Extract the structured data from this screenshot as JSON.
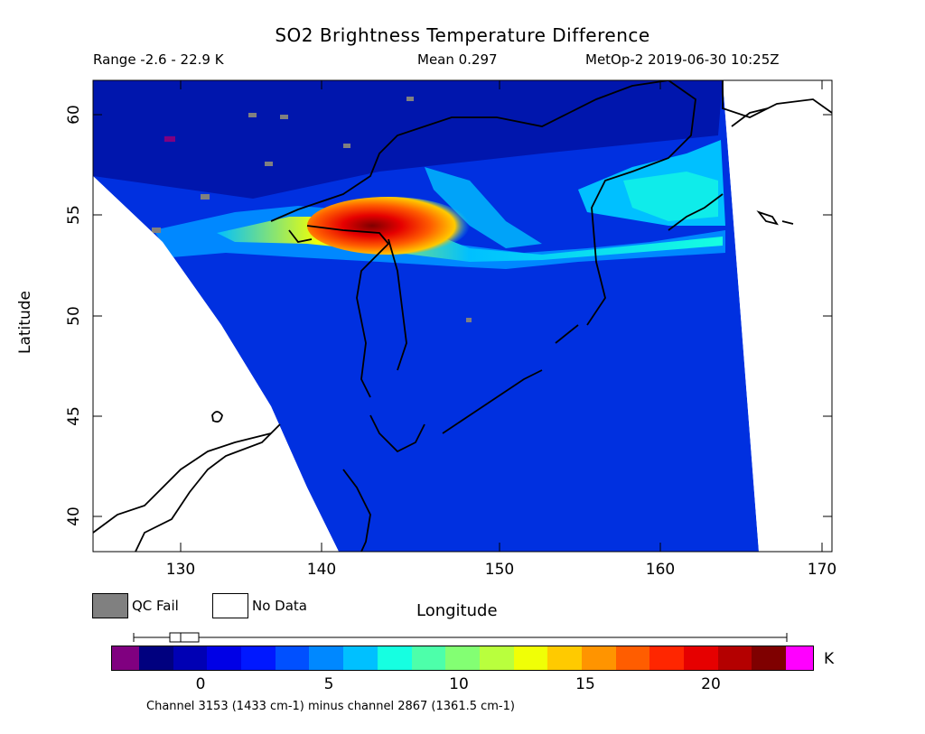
{
  "header": {
    "title": "SO2 Brightness Temperature Difference",
    "range": "Range -2.6 - 22.9 K",
    "mean": "Mean 0.297",
    "satellite_time": "MetOp-2 2019-06-30 10:25Z"
  },
  "axes": {
    "xlabel": "Longitude",
    "ylabel": "Latitude",
    "xticks": [
      "130",
      "140",
      "150",
      "160",
      "170"
    ],
    "yticks": [
      "40",
      "45",
      "50",
      "55",
      "60"
    ]
  },
  "legend": {
    "qc_fail_label": "QC Fail",
    "no_data_label": "No Data",
    "qc_fail_color": "#808080",
    "no_data_color": "#ffffff"
  },
  "colorbar": {
    "unit": "K",
    "ticks": [
      "0",
      "5",
      "10",
      "15",
      "20"
    ],
    "underflow_color": "#800080",
    "overflow_color": "#ff00ff",
    "colors": [
      "#00007f",
      "#0000b4",
      "#0000e6",
      "#0018ff",
      "#0050ff",
      "#0088ff",
      "#00c0ff",
      "#16ffe1",
      "#4dffaa",
      "#83ff73",
      "#b9ff3d",
      "#f0ff06",
      "#ffca00",
      "#ff9400",
      "#ff5d00",
      "#ff2600",
      "#e60000",
      "#b40000",
      "#7f0000"
    ],
    "range_min": -2.6,
    "range_max": 22.9,
    "channel_label": "Channel 3153 (1433 cm-1) minus channel 2867 (1361.5 cm-1)"
  }
}
